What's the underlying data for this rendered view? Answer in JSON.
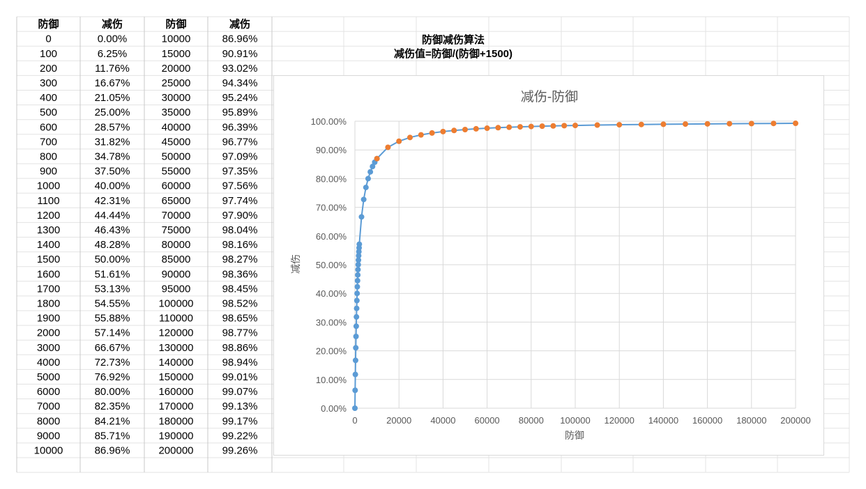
{
  "table": {
    "headers": [
      "防御",
      "减伤",
      "防御",
      "减伤"
    ],
    "rows": [
      [
        "0",
        "0.00%",
        "10000",
        "86.96%"
      ],
      [
        "100",
        "6.25%",
        "15000",
        "90.91%"
      ],
      [
        "200",
        "11.76%",
        "20000",
        "93.02%"
      ],
      [
        "300",
        "16.67%",
        "25000",
        "94.34%"
      ],
      [
        "400",
        "21.05%",
        "30000",
        "95.24%"
      ],
      [
        "500",
        "25.00%",
        "35000",
        "95.89%"
      ],
      [
        "600",
        "28.57%",
        "40000",
        "96.39%"
      ],
      [
        "700",
        "31.82%",
        "45000",
        "96.77%"
      ],
      [
        "800",
        "34.78%",
        "50000",
        "97.09%"
      ],
      [
        "900",
        "37.50%",
        "55000",
        "97.35%"
      ],
      [
        "1000",
        "40.00%",
        "60000",
        "97.56%"
      ],
      [
        "1100",
        "42.31%",
        "65000",
        "97.74%"
      ],
      [
        "1200",
        "44.44%",
        "70000",
        "97.90%"
      ],
      [
        "1300",
        "46.43%",
        "75000",
        "98.04%"
      ],
      [
        "1400",
        "48.28%",
        "80000",
        "98.16%"
      ],
      [
        "1500",
        "50.00%",
        "85000",
        "98.27%"
      ],
      [
        "1600",
        "51.61%",
        "90000",
        "98.36%"
      ],
      [
        "1700",
        "53.13%",
        "95000",
        "98.45%"
      ],
      [
        "1800",
        "54.55%",
        "100000",
        "98.52%"
      ],
      [
        "1900",
        "55.88%",
        "110000",
        "98.65%"
      ],
      [
        "2000",
        "57.14%",
        "120000",
        "98.77%"
      ],
      [
        "3000",
        "66.67%",
        "130000",
        "98.86%"
      ],
      [
        "4000",
        "72.73%",
        "140000",
        "98.94%"
      ],
      [
        "5000",
        "76.92%",
        "150000",
        "99.01%"
      ],
      [
        "6000",
        "80.00%",
        "160000",
        "99.07%"
      ],
      [
        "7000",
        "82.35%",
        "170000",
        "99.13%"
      ],
      [
        "8000",
        "84.21%",
        "180000",
        "99.17%"
      ],
      [
        "9000",
        "85.71%",
        "190000",
        "99.22%"
      ],
      [
        "10000",
        "86.96%",
        "200000",
        "99.26%"
      ]
    ]
  },
  "formula": {
    "title": "防御减伤算法",
    "expression": "减伤值=防御/(防御+1500)"
  },
  "colors": {
    "series_a": "#5b9bd5",
    "series_b": "#ed7d31",
    "grid": "#d9d9d9",
    "axis_text": "#595959"
  },
  "chart_data": {
    "type": "scatter",
    "title": "减伤-防御",
    "xlabel": "防御",
    "ylabel": "减伤",
    "xlim": [
      0,
      200000
    ],
    "ylim": [
      0,
      1
    ],
    "x_ticks": [
      0,
      20000,
      40000,
      60000,
      80000,
      100000,
      120000,
      140000,
      160000,
      180000,
      200000
    ],
    "y_ticks": [
      0,
      0.1,
      0.2,
      0.3,
      0.4,
      0.5,
      0.6,
      0.7,
      0.8,
      0.9,
      1.0
    ],
    "x_tick_labels": [
      "0",
      "20000",
      "40000",
      "60000",
      "80000",
      "100000",
      "120000",
      "140000",
      "160000",
      "180000",
      "200000"
    ],
    "y_tick_labels": [
      "0.00%",
      "10.00%",
      "20.00%",
      "30.00%",
      "40.00%",
      "50.00%",
      "60.00%",
      "70.00%",
      "80.00%",
      "90.00%",
      "100.00%"
    ],
    "grid": true,
    "legend": "none",
    "series": [
      {
        "x": [
          0,
          100,
          200,
          300,
          400,
          500,
          600,
          700,
          800,
          900,
          1000,
          1100,
          1200,
          1300,
          1400,
          1500,
          1600,
          1700,
          1800,
          1900,
          2000,
          3000,
          4000,
          5000,
          6000,
          7000,
          8000,
          9000,
          10000
        ],
        "y": [
          0,
          0.0625,
          0.1176,
          0.1667,
          0.2105,
          0.25,
          0.2857,
          0.3182,
          0.3478,
          0.375,
          0.4,
          0.4231,
          0.4444,
          0.4643,
          0.4828,
          0.5,
          0.5161,
          0.5313,
          0.5455,
          0.5588,
          0.5714,
          0.6667,
          0.7273,
          0.7692,
          0.8,
          0.8235,
          0.8421,
          0.8571,
          0.8696
        ]
      },
      {
        "x": [
          10000,
          15000,
          20000,
          25000,
          30000,
          35000,
          40000,
          45000,
          50000,
          55000,
          60000,
          65000,
          70000,
          75000,
          80000,
          85000,
          90000,
          95000,
          100000,
          110000,
          120000,
          130000,
          140000,
          150000,
          160000,
          170000,
          180000,
          190000,
          200000
        ],
        "y": [
          0.8696,
          0.9091,
          0.9302,
          0.9434,
          0.9524,
          0.9589,
          0.9639,
          0.9677,
          0.9709,
          0.9735,
          0.9756,
          0.9774,
          0.979,
          0.9804,
          0.9816,
          0.9827,
          0.9836,
          0.9845,
          0.9852,
          0.9865,
          0.9877,
          0.9886,
          0.9894,
          0.9901,
          0.9907,
          0.9913,
          0.9917,
          0.9922,
          0.9926
        ]
      }
    ]
  }
}
